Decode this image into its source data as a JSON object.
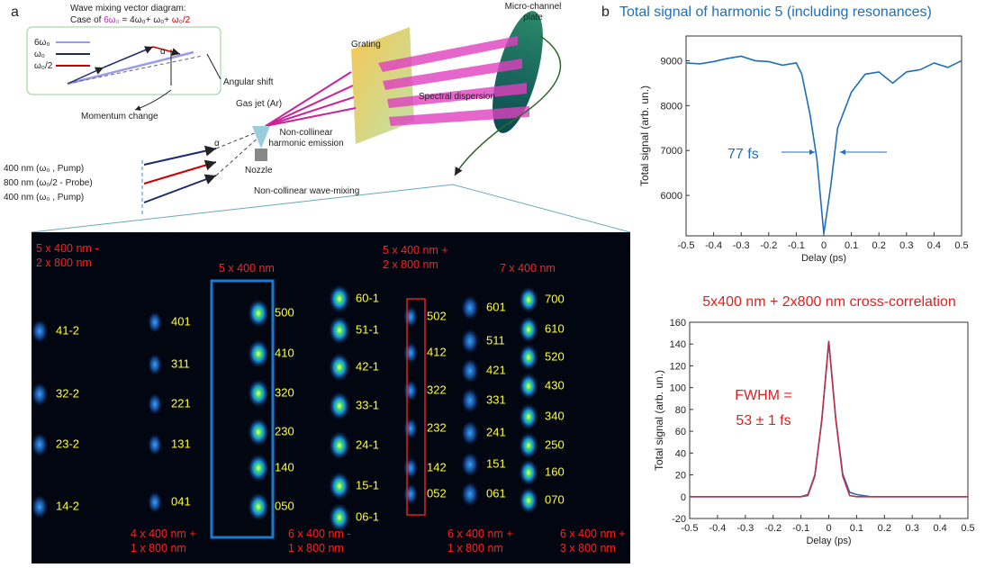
{
  "panel_labels": [
    "a",
    "b"
  ],
  "diagram": {
    "inset_title": "Wave mixing  vector diagram:",
    "formula_parts": [
      {
        "text": "Case of ",
        "color": "#222222"
      },
      {
        "text": "6ω₀",
        "color": "#cc22cc"
      },
      {
        "text": " = 4ω₀+ ω₀+ ",
        "color": "#222222"
      },
      {
        "text": "ω₀/2",
        "color": "#cc0000"
      }
    ],
    "inset_legend": [
      {
        "text": "6ω₀",
        "color": "#9999ee"
      },
      {
        "text": "ω₀",
        "color": "#1a2a6a"
      },
      {
        "text": "ω₀/2",
        "color": "#cc0000"
      }
    ],
    "alpha": "α",
    "angular_shift": "Angular shift",
    "momentum_change": "Momentum change",
    "gas_jet": "Gas jet (Ar)",
    "nozzle": "Nozzle",
    "wave_mixing": "Non-collinear  wave-mixing",
    "harmonic_emission": [
      "Non-collinear",
      "harmonic emission"
    ],
    "grating": "Grating",
    "spectral_dispersion": "Spectral dispersion",
    "mcp": [
      "Micro-channel",
      "plate"
    ],
    "beams": [
      "400 nm (ω₀ ,   Pump)",
      "800 nm (ω₀/2 -  Probe)",
      "400 nm (ω₀ ,   Pump)"
    ]
  },
  "image": {
    "top_groups": [
      [
        "5 x 400 nm -",
        "2 x 800 nm"
      ],
      [
        "5 x 400 nm"
      ],
      [
        "5 x 400 nm +",
        "2 x 800 nm"
      ],
      [
        "7 x 400 nm"
      ]
    ],
    "bottom_groups": [
      [
        "4 x 400 nm +",
        "1 x 800 nm"
      ],
      [
        "6 x 400 nm -",
        "1 x 800 nm"
      ],
      [
        "6 x 400 nm +",
        "1 x 800 nm"
      ],
      [
        "6 x 400 nm +",
        "3 x 800 nm"
      ]
    ],
    "columns": [
      [
        "41-2",
        "32-2",
        "23-2",
        "14-2"
      ],
      [
        "401",
        "311",
        "221",
        "131",
        "041"
      ],
      [
        "500",
        "410",
        "320",
        "230",
        "140",
        "050"
      ],
      [
        "60-1",
        "51-1",
        "42-1",
        "33-1",
        "24-1",
        "15-1",
        "06-1"
      ],
      [
        "502",
        "412",
        "322",
        "232",
        "142",
        "052"
      ],
      [
        "601",
        "511",
        "421",
        "331",
        "241",
        "151",
        "061"
      ],
      [
        "700",
        "610",
        "520",
        "430",
        "340",
        "250",
        "160",
        "070"
      ]
    ]
  },
  "chart_data": [
    {
      "type": "line",
      "title": "Total signal of harmonic 5 (including resonances)",
      "title_color": "#1f6fb8",
      "xlabel": "Delay (ps)",
      "ylabel": "Total signal  (arb. un.)",
      "annotations": [
        "77 fs"
      ],
      "annotation_color": "#1f6fb8",
      "x": [
        -0.5,
        -0.45,
        -0.4,
        -0.35,
        -0.3,
        -0.25,
        -0.2,
        -0.15,
        -0.1,
        -0.08,
        -0.05,
        -0.025,
        0,
        0.025,
        0.05,
        0.075,
        0.1,
        0.15,
        0.2,
        0.25,
        0.3,
        0.35,
        0.4,
        0.45,
        0.5
      ],
      "values": [
        8950,
        8930,
        8980,
        9050,
        9100,
        9000,
        8980,
        8900,
        8950,
        8700,
        7800,
        6800,
        5150,
        6200,
        7500,
        7900,
        8300,
        8700,
        8750,
        8500,
        8750,
        8800,
        8950,
        8850,
        9000
      ],
      "color": "#1f6fb8",
      "xlim": [
        -0.5,
        0.5
      ],
      "xticks": [
        -0.5,
        -0.4,
        -0.3,
        -0.2,
        -0.1,
        0,
        0.1,
        0.2,
        0.3,
        0.4,
        0.5
      ],
      "ylim": [
        5100,
        9550
      ],
      "yticks": [
        6000,
        7000,
        8000,
        9000
      ]
    },
    {
      "type": "line",
      "title": "5x400 nm + 2x800 nm cross-correlation",
      "title_color": "#e02020",
      "xlabel": "Delay (ps)",
      "ylabel": "Total signal  (arb. un.)",
      "annotations": [
        "FWHM =",
        "53 ± 1 fs"
      ],
      "annotation_color": "#e02020",
      "x": [
        -0.5,
        -0.1,
        -0.075,
        -0.05,
        -0.025,
        0,
        0.025,
        0.05,
        0.075,
        0.1,
        0.15,
        0.5
      ],
      "series": [
        {
          "color": "#1f6fb8",
          "values": [
            0,
            0,
            2,
            20,
            70,
            143,
            72,
            21,
            4,
            2,
            0,
            0
          ]
        },
        {
          "color": "#c0304a",
          "values": [
            0,
            0,
            1,
            19,
            71,
            142,
            71,
            19,
            1,
            0,
            0,
            0
          ]
        }
      ],
      "xlim": [
        -0.5,
        0.5
      ],
      "xticks": [
        -0.5,
        -0.4,
        -0.3,
        -0.2,
        -0.1,
        0,
        0.1,
        0.2,
        0.3,
        0.4,
        0.5
      ],
      "ylim": [
        -20,
        160
      ],
      "yticks": [
        -20,
        0,
        20,
        40,
        60,
        80,
        100,
        120,
        140,
        160
      ]
    }
  ]
}
